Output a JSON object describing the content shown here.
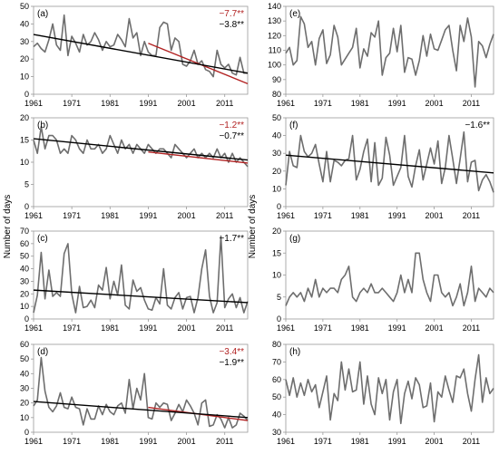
{
  "y_axis_title_left": "Number of days",
  "y_axis_title_right": "Number of days",
  "colors": {
    "series": "#6e6e6e",
    "trend_all": "#000000",
    "trend_recent": "#b22222",
    "axis": "#9a9a9a"
  },
  "chart_data": [
    {
      "type": "line",
      "label": "(a)",
      "column": "left",
      "row": 0,
      "x": [
        1961,
        1962,
        1963,
        1964,
        1965,
        1966,
        1967,
        1968,
        1969,
        1970,
        1971,
        1972,
        1973,
        1974,
        1975,
        1976,
        1977,
        1978,
        1979,
        1980,
        1981,
        1982,
        1983,
        1984,
        1985,
        1986,
        1987,
        1988,
        1989,
        1990,
        1991,
        1992,
        1993,
        1994,
        1995,
        1996,
        1997,
        1998,
        1999,
        2000,
        2001,
        2002,
        2003,
        2004,
        2005,
        2006,
        2007,
        2008,
        2009,
        2010,
        2011,
        2012,
        2013,
        2014,
        2015,
        2016,
        2017
      ],
      "values": [
        27,
        29,
        26,
        24,
        31,
        40,
        28,
        25,
        45,
        22,
        33,
        29,
        24,
        34,
        28,
        30,
        35,
        31,
        25,
        30,
        27,
        28,
        34,
        31,
        27,
        43,
        32,
        35,
        22,
        30,
        24,
        22,
        22,
        38,
        41,
        40,
        25,
        32,
        30,
        17,
        16,
        19,
        25,
        17,
        19,
        14,
        13,
        10,
        25,
        17,
        15,
        17,
        12,
        11,
        21,
        12,
        12
      ],
      "xticks": [
        1961,
        1971,
        1981,
        1991,
        2001,
        2011
      ],
      "ylim": [
        0,
        50
      ],
      "yticks": [
        0,
        10,
        20,
        30,
        40,
        50
      ],
      "trends": [
        {
          "label": "−7.7**",
          "color": "#b22222",
          "from": [
            1991,
            29
          ],
          "to": [
            2017,
            6
          ]
        },
        {
          "label": "−3.8**",
          "color": "#000000",
          "from": [
            1961,
            34
          ],
          "to": [
            2017,
            12
          ]
        }
      ]
    },
    {
      "type": "line",
      "label": "(b)",
      "column": "left",
      "row": 1,
      "x": [
        1961,
        1962,
        1963,
        1964,
        1965,
        1966,
        1967,
        1968,
        1969,
        1970,
        1971,
        1972,
        1973,
        1974,
        1975,
        1976,
        1977,
        1978,
        1979,
        1980,
        1981,
        1982,
        1983,
        1984,
        1985,
        1986,
        1987,
        1988,
        1989,
        1990,
        1991,
        1992,
        1993,
        1994,
        1995,
        1996,
        1997,
        1998,
        1999,
        2000,
        2001,
        2002,
        2003,
        2004,
        2005,
        2006,
        2007,
        2008,
        2009,
        2010,
        2011,
        2012,
        2013,
        2014,
        2015,
        2016,
        2017
      ],
      "values": [
        15,
        12,
        18,
        13,
        16,
        16,
        15,
        12,
        13,
        12,
        16,
        15,
        13,
        12,
        15,
        13,
        13,
        14,
        12,
        13,
        16,
        14,
        12,
        15,
        13,
        14,
        12,
        14,
        13,
        12,
        14,
        13,
        12,
        13,
        13,
        12,
        11,
        14,
        13,
        12,
        11,
        12,
        13,
        11,
        12,
        11,
        12,
        11,
        13,
        11,
        12,
        10,
        12,
        10,
        11,
        10,
        9
      ],
      "xticks": [
        1961,
        1971,
        1981,
        1991,
        2001,
        2011
      ],
      "ylim": [
        0,
        20
      ],
      "yticks": [
        0,
        5,
        10,
        15,
        20
      ],
      "trends": [
        {
          "label": "−1.2**",
          "color": "#b22222",
          "from": [
            1991,
            12.3
          ],
          "to": [
            2017,
            9.8
          ]
        },
        {
          "label": "−0.7**",
          "color": "#000000",
          "from": [
            1961,
            15.3
          ],
          "to": [
            2017,
            10.5
          ]
        }
      ]
    },
    {
      "type": "line",
      "label": "(c)",
      "column": "left",
      "row": 2,
      "x": [
        1961,
        1962,
        1963,
        1964,
        1965,
        1966,
        1967,
        1968,
        1969,
        1970,
        1971,
        1972,
        1973,
        1974,
        1975,
        1976,
        1977,
        1978,
        1979,
        1980,
        1981,
        1982,
        1983,
        1984,
        1985,
        1986,
        1987,
        1988,
        1989,
        1990,
        1991,
        1992,
        1993,
        1994,
        1995,
        1996,
        1997,
        1998,
        1999,
        2000,
        2001,
        2002,
        2003,
        2004,
        2005,
        2006,
        2007,
        2008,
        2009,
        2010,
        2011,
        2012,
        2013,
        2014,
        2015,
        2016,
        2017
      ],
      "values": [
        5,
        19,
        53,
        16,
        39,
        18,
        21,
        18,
        52,
        60,
        20,
        5,
        26,
        9,
        10,
        15,
        9,
        27,
        23,
        41,
        16,
        30,
        19,
        43,
        11,
        8,
        31,
        22,
        25,
        15,
        8,
        7,
        17,
        12,
        40,
        11,
        8,
        17,
        21,
        8,
        17,
        18,
        5,
        17,
        40,
        55,
        18,
        5,
        13,
        66,
        9,
        16,
        20,
        9,
        17,
        5,
        14
      ],
      "xticks": [
        1961,
        1971,
        1981,
        1991,
        2001,
        2011
      ],
      "ylim": [
        0,
        70
      ],
      "yticks": [
        0,
        10,
        20,
        30,
        40,
        50,
        60,
        70
      ],
      "trends": [
        {
          "label": "−1.7**",
          "color": "#000000",
          "from": [
            1961,
            23
          ],
          "to": [
            2017,
            13
          ]
        }
      ]
    },
    {
      "type": "line",
      "label": "(d)",
      "column": "left",
      "row": 3,
      "x": [
        1961,
        1962,
        1963,
        1964,
        1965,
        1966,
        1967,
        1968,
        1969,
        1970,
        1971,
        1972,
        1973,
        1974,
        1975,
        1976,
        1977,
        1978,
        1979,
        1980,
        1981,
        1982,
        1983,
        1984,
        1985,
        1986,
        1987,
        1988,
        1989,
        1990,
        1991,
        1992,
        1993,
        1994,
        1995,
        1996,
        1997,
        1998,
        1999,
        2000,
        2001,
        2002,
        2003,
        2004,
        2005,
        2006,
        2007,
        2008,
        2009,
        2010,
        2011,
        2012,
        2013,
        2014,
        2015,
        2016,
        2017
      ],
      "values": [
        18,
        22,
        51,
        28,
        17,
        14,
        18,
        27,
        17,
        16,
        24,
        17,
        16,
        5,
        16,
        9,
        9,
        18,
        12,
        19,
        14,
        12,
        18,
        20,
        13,
        36,
        16,
        30,
        22,
        40,
        10,
        9,
        20,
        17,
        20,
        19,
        8,
        13,
        19,
        14,
        22,
        18,
        13,
        5,
        20,
        22,
        4,
        5,
        12,
        9,
        3,
        10,
        3,
        5,
        13,
        11,
        8
      ],
      "xticks": [
        1961,
        1971,
        1981,
        1991,
        2001,
        2011
      ],
      "ylim": [
        0,
        60
      ],
      "yticks": [
        0,
        10,
        20,
        30,
        40,
        50,
        60
      ],
      "trends": [
        {
          "label": "−3.4**",
          "color": "#b22222",
          "from": [
            1991,
            17
          ],
          "to": [
            2017,
            8
          ]
        },
        {
          "label": "−1.9**",
          "color": "#000000",
          "from": [
            1961,
            21
          ],
          "to": [
            2017,
            10
          ]
        }
      ]
    },
    {
      "type": "line",
      "label": "(e)",
      "column": "right",
      "row": 0,
      "x": [
        1961,
        1962,
        1963,
        1964,
        1965,
        1966,
        1967,
        1968,
        1969,
        1970,
        1971,
        1972,
        1973,
        1974,
        1975,
        1976,
        1977,
        1978,
        1979,
        1980,
        1981,
        1982,
        1983,
        1984,
        1985,
        1986,
        1987,
        1988,
        1989,
        1990,
        1991,
        1992,
        1993,
        1994,
        1995,
        1996,
        1997,
        1998,
        1999,
        2000,
        2001,
        2002,
        2003,
        2004,
        2005,
        2006,
        2007,
        2008,
        2009,
        2010,
        2011,
        2012,
        2013,
        2014,
        2015,
        2016,
        2017
      ],
      "values": [
        108,
        112,
        100,
        103,
        133,
        128,
        112,
        116,
        100,
        118,
        124,
        101,
        107,
        127,
        119,
        100,
        104,
        108,
        112,
        125,
        98,
        111,
        106,
        122,
        119,
        130,
        93,
        105,
        108,
        125,
        109,
        127,
        95,
        105,
        104,
        93,
        103,
        120,
        106,
        121,
        111,
        110,
        117,
        124,
        127,
        110,
        96,
        127,
        116,
        132,
        119,
        85,
        116,
        113,
        105,
        114,
        121
      ],
      "xticks": [
        1961,
        1971,
        1981,
        1991,
        2001,
        2011
      ],
      "ylim": [
        80,
        140
      ],
      "yticks": [
        80,
        90,
        100,
        110,
        120,
        130,
        140
      ],
      "trends": []
    },
    {
      "type": "line",
      "label": "(f)",
      "column": "right",
      "row": 1,
      "x": [
        1961,
        1962,
        1963,
        1964,
        1965,
        1966,
        1967,
        1968,
        1969,
        1970,
        1971,
        1972,
        1973,
        1974,
        1975,
        1976,
        1977,
        1978,
        1979,
        1980,
        1981,
        1982,
        1983,
        1984,
        1985,
        1986,
        1987,
        1988,
        1989,
        1990,
        1991,
        1992,
        1993,
        1994,
        1995,
        1996,
        1997,
        1998,
        1999,
        2000,
        2001,
        2002,
        2003,
        2004,
        2005,
        2006,
        2007,
        2008,
        2009,
        2010,
        2011,
        2012,
        2013,
        2014,
        2015,
        2016,
        2017
      ],
      "values": [
        12,
        31,
        23,
        22,
        40,
        31,
        28,
        30,
        35,
        24,
        14,
        31,
        14,
        26,
        25,
        23,
        26,
        27,
        40,
        15,
        21,
        31,
        38,
        14,
        36,
        12,
        16,
        39,
        29,
        12,
        17,
        22,
        40,
        17,
        11,
        23,
        32,
        15,
        24,
        33,
        24,
        37,
        13,
        22,
        40,
        27,
        13,
        27,
        42,
        14,
        25,
        26,
        9,
        15,
        18,
        14,
        8
      ],
      "xticks": [
        1961,
        1971,
        1981,
        1991,
        2001,
        2011
      ],
      "ylim": [
        0,
        50
      ],
      "yticks": [
        0,
        10,
        20,
        30,
        40,
        50
      ],
      "trends": [
        {
          "label": "−1.6**",
          "color": "#000000",
          "from": [
            1961,
            29
          ],
          "to": [
            2017,
            19
          ]
        }
      ]
    },
    {
      "type": "line",
      "label": "(g)",
      "column": "right",
      "row": 2,
      "x": [
        1961,
        1962,
        1963,
        1964,
        1965,
        1966,
        1967,
        1968,
        1969,
        1970,
        1971,
        1972,
        1973,
        1974,
        1975,
        1976,
        1977,
        1978,
        1979,
        1980,
        1981,
        1982,
        1983,
        1984,
        1985,
        1986,
        1987,
        1988,
        1989,
        1990,
        1991,
        1992,
        1993,
        1994,
        1995,
        1996,
        1997,
        1998,
        1999,
        2000,
        2001,
        2002,
        2003,
        2004,
        2005,
        2006,
        2007,
        2008,
        2009,
        2010,
        2011,
        2012,
        2013,
        2014,
        2015,
        2016,
        2017
      ],
      "values": [
        3,
        5,
        6,
        5,
        6,
        4,
        7,
        5,
        9,
        5,
        7,
        6,
        7,
        7,
        6,
        9,
        10,
        12,
        5,
        4,
        6,
        7,
        6,
        8,
        6,
        6,
        7,
        6,
        5,
        4,
        6,
        10,
        6,
        9,
        6,
        15,
        15,
        9,
        6,
        4,
        10,
        10,
        6,
        5,
        6,
        3,
        5,
        8,
        3,
        6,
        12,
        4,
        7,
        6,
        5,
        7,
        6
      ],
      "xticks": [
        1961,
        1971,
        1981,
        1991,
        2001,
        2011
      ],
      "ylim": [
        0,
        20
      ],
      "yticks": [
        0,
        5,
        10,
        15,
        20
      ],
      "trends": []
    },
    {
      "type": "line",
      "label": "(h)",
      "column": "right",
      "row": 3,
      "x": [
        1961,
        1962,
        1963,
        1964,
        1965,
        1966,
        1967,
        1968,
        1969,
        1970,
        1971,
        1972,
        1973,
        1974,
        1975,
        1976,
        1977,
        1978,
        1979,
        1980,
        1981,
        1982,
        1983,
        1984,
        1985,
        1986,
        1987,
        1988,
        1989,
        1990,
        1991,
        1992,
        1993,
        1994,
        1995,
        1996,
        1997,
        1998,
        1999,
        2000,
        2001,
        2002,
        2003,
        2004,
        2005,
        2006,
        2007,
        2008,
        2009,
        2010,
        2011,
        2012,
        2013,
        2014,
        2015,
        2016,
        2017
      ],
      "values": [
        60,
        51,
        61,
        50,
        58,
        51,
        60,
        53,
        57,
        44,
        53,
        62,
        37,
        52,
        48,
        70,
        54,
        66,
        53,
        54,
        70,
        46,
        62,
        46,
        40,
        61,
        52,
        60,
        37,
        53,
        60,
        35,
        52,
        59,
        49,
        61,
        57,
        44,
        45,
        58,
        36,
        53,
        50,
        62,
        54,
        47,
        62,
        61,
        66,
        52,
        42,
        60,
        74,
        47,
        61,
        52,
        55
      ],
      "xticks": [
        1961,
        1971,
        1981,
        1991,
        2001,
        2011
      ],
      "ylim": [
        30,
        80
      ],
      "yticks": [
        30,
        40,
        50,
        60,
        70,
        80
      ],
      "trends": []
    }
  ]
}
